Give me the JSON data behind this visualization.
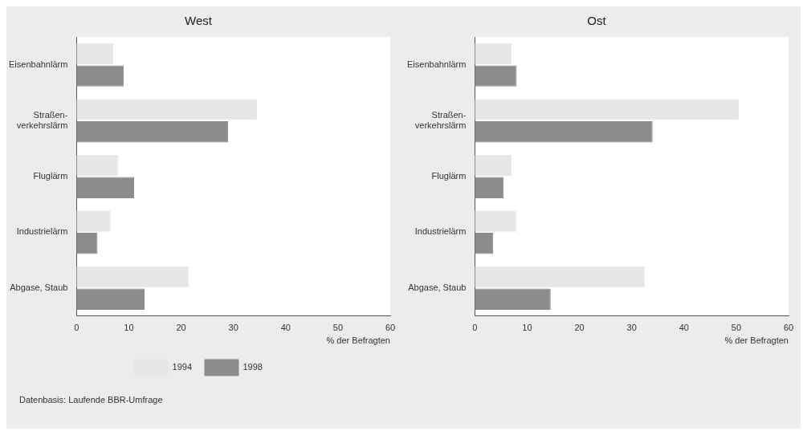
{
  "chart_data": [
    {
      "type": "bar",
      "title": "West",
      "orientation": "horizontal",
      "categories": [
        "Eisenbahnlärm",
        "Straßen-\nverkehrslärm",
        "Fluglärm",
        "Industrielärm",
        "Abgase, Staub"
      ],
      "series": [
        {
          "name": "1994",
          "color": "#e6e6e6",
          "values": [
            7,
            34.5,
            8,
            6.5,
            21.5
          ]
        },
        {
          "name": "1998",
          "color": "#8c8c8c",
          "values": [
            9,
            29,
            11,
            4,
            13
          ]
        }
      ],
      "xlabel": "% der Befragten",
      "xlim": [
        0,
        60
      ],
      "xticks": [
        0,
        10,
        20,
        30,
        40,
        50,
        60
      ],
      "grid": false,
      "legend": "bottom",
      "annotations": [
        "Datenbasis: Laufende BBR-Umfrage"
      ]
    },
    {
      "type": "bar",
      "title": "Ost",
      "orientation": "horizontal",
      "categories": [
        "Eisenbahnlärm",
        "Straßen-\nverkehrslärm",
        "Fluglärm",
        "Industrielärm",
        "Abgase, Staub"
      ],
      "series": [
        {
          "name": "1994",
          "color": "#e6e6e6",
          "values": [
            7,
            50.5,
            7,
            8,
            32.5
          ]
        },
        {
          "name": "1998",
          "color": "#8c8c8c",
          "values": [
            8,
            34,
            5.5,
            3.5,
            14.5
          ]
        }
      ],
      "xlabel": "% der Befragten",
      "xlim": [
        0,
        60
      ],
      "xticks": [
        0,
        10,
        20,
        30,
        40,
        50,
        60
      ],
      "grid": false,
      "legend": false
    }
  ]
}
